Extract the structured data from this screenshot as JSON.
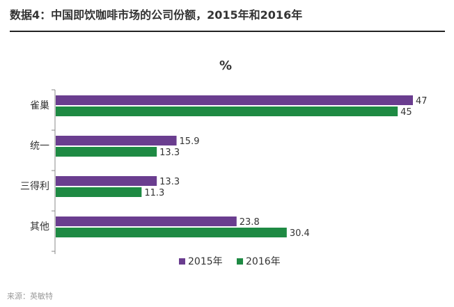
{
  "header": {
    "title": "数据4：中国即饮咖啡市场的公司份额，2015年和2016年"
  },
  "footer": {
    "source": "来源：英敏特"
  },
  "colors": {
    "series_2015": "#6a3d8f",
    "series_2016": "#1e8a43",
    "axis": "#888888",
    "text": "#333333"
  },
  "chart_data": {
    "type": "bar",
    "orientation": "horizontal",
    "title": "%",
    "categories": [
      "雀巢",
      "统一",
      "三得利",
      "其他"
    ],
    "series": [
      {
        "name": "2015年",
        "values": [
          47,
          15.9,
          13.3,
          23.8
        ],
        "labels": [
          "47",
          "15.9",
          "13.3",
          "23.8"
        ]
      },
      {
        "name": "2016年",
        "values": [
          45,
          13.3,
          11.3,
          30.4
        ],
        "labels": [
          "45",
          "13.3",
          "11.3",
          "30.4"
        ]
      }
    ],
    "xlim": [
      0,
      47
    ],
    "xlabel": "",
    "ylabel": "",
    "grid": false,
    "legend_position": "bottom"
  }
}
